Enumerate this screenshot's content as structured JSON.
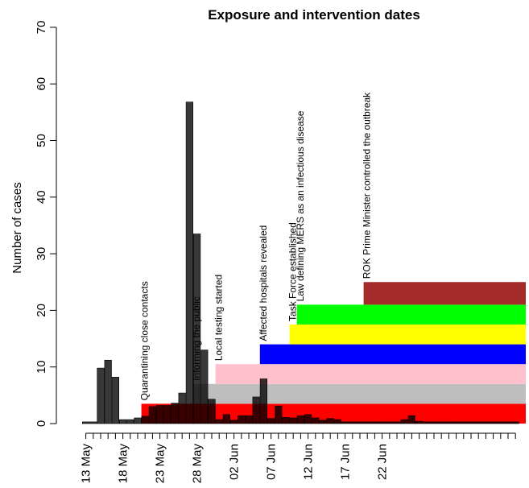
{
  "chart_data": {
    "type": "bar",
    "title": "Exposure and intervention dates",
    "ylabel": "Number of cases",
    "ylim": [
      0,
      70
    ],
    "yticks": [
      "0",
      "10",
      "20",
      "30",
      "40",
      "50",
      "60",
      "70"
    ],
    "xticks": [
      "13 May",
      "18 May",
      "23 May",
      "28 May",
      "02 Jun",
      "07 Jun",
      "12 Jun",
      "17 Jun",
      "22 Jun"
    ],
    "start_date": "2015-05-13",
    "days": 59,
    "cases": [
      0.3,
      0.3,
      9.8,
      11.2,
      8.2,
      0.7,
      0.7,
      1,
      1.3,
      3,
      3.2,
      3.2,
      3.6,
      5.4,
      56.8,
      33.5,
      13,
      4.3,
      0.7,
      1.6,
      0.6,
      1.4,
      1.4,
      4.7,
      7.9,
      0.9,
      3.1,
      1.1,
      1,
      1.4,
      1.6,
      1,
      0.6,
      0.9,
      0.7,
      0.3,
      0.3,
      0.3,
      0.3,
      0.3,
      0.3,
      0.3,
      0.3,
      0.7,
      1.4,
      0.4,
      0.3,
      0.3,
      0.3,
      0.3,
      0.3,
      0.3,
      0.3,
      0.3,
      0.3,
      0.3,
      0.3,
      0.3,
      0.3
    ],
    "interventions": [
      {
        "label": "Quarantining close contacts",
        "start_day": 8,
        "ymin": 0,
        "ymax": 3.5,
        "color": "#ff0000"
      },
      {
        "label": "Informing the public",
        "start_day": 15,
        "ymin": 3.5,
        "ymax": 7,
        "color": "#bebebe"
      },
      {
        "label": "Local testing started",
        "start_day": 18,
        "ymin": 7,
        "ymax": 10.5,
        "color": "#ffc0cb"
      },
      {
        "label": "Affected hospitals revealed",
        "start_day": 24,
        "ymin": 10.5,
        "ymax": 14,
        "color": "#0000ff"
      },
      {
        "label": "Task Force established",
        "start_day": 28,
        "ymin": 14,
        "ymax": 17.5,
        "color": "#ffff00"
      },
      {
        "label": "Law defining MERS as an infectious disease",
        "start_day": 29,
        "ymin": 17.5,
        "ymax": 21,
        "color": "#00ff00"
      },
      {
        "label": "ROK Prime Minister controlled the outbreak",
        "start_day": 38,
        "ymin": 21,
        "ymax": 25,
        "color": "#a52a2a"
      }
    ]
  }
}
